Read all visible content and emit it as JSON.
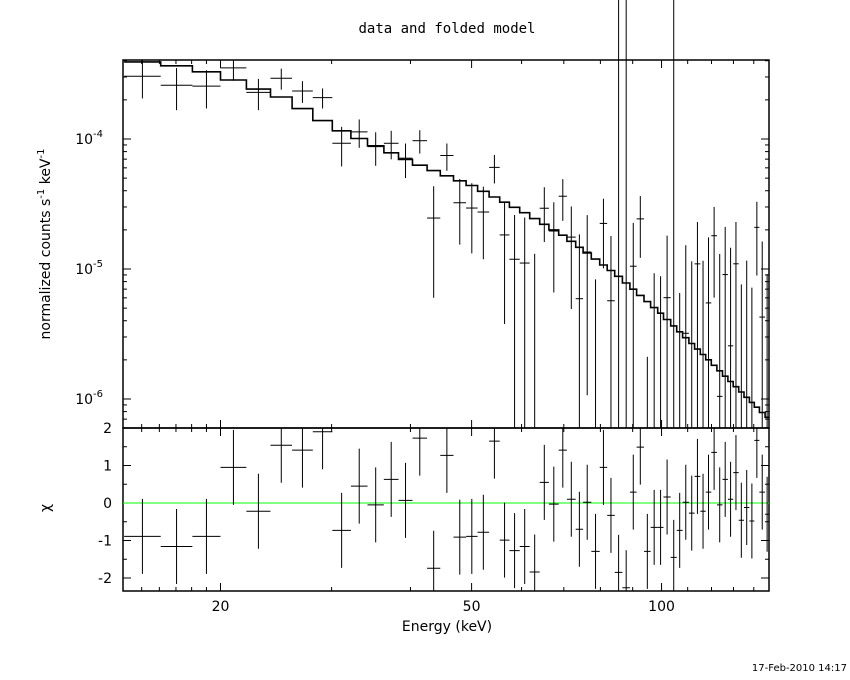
{
  "chart_data": [
    {
      "type": "line",
      "panel": "top",
      "title": "data and folded model",
      "ylabel": {
        "parts": [
          "normalized counts s",
          "-1",
          " keV",
          "-1"
        ]
      },
      "yscale": "log",
      "ylim": [
        6e-07,
        0.000405
      ],
      "xscale": "log",
      "xlim": [
        14.07,
        148.1
      ],
      "ytick_labels": [
        {
          "value": 0.0001,
          "base": "10",
          "exp": "-4"
        },
        {
          "value": 1e-05,
          "base": "10",
          "exp": "-5"
        },
        {
          "value": 1e-06,
          "base": "10",
          "exp": "-6"
        }
      ],
      "model_anchors": [
        [
          14,
          0.0004
        ],
        [
          16,
          0.000385
        ],
        [
          18,
          0.00035
        ],
        [
          20,
          0.00031
        ],
        [
          22,
          0.00026
        ],
        [
          25,
          0.00021
        ],
        [
          28,
          0.000155
        ],
        [
          30,
          0.000125
        ],
        [
          35,
          9e-05
        ],
        [
          40,
          6.7e-05
        ],
        [
          50,
          4.4e-05
        ],
        [
          60,
          2.8e-05
        ],
        [
          70,
          1.8e-05
        ],
        [
          85,
          9e-06
        ],
        [
          100,
          4.5e-06
        ],
        [
          120,
          1.9e-06
        ],
        [
          148,
          7e-07
        ]
      ],
      "error_model": {
        "relative": 0.25,
        "floor": 1.2e-05
      },
      "series": [
        {
          "name": "data",
          "style": "crosses"
        },
        {
          "name": "folded model",
          "style": "histogram"
        }
      ]
    },
    {
      "type": "scatter",
      "panel": "bottom",
      "ylabel": "χ",
      "xlabel": "Energy (keV)",
      "ylim": [
        -2.35,
        2.0
      ],
      "xscale": "log",
      "xlim": [
        14.07,
        148.1
      ],
      "xtick_labels": [
        {
          "value": 20,
          "label": "20"
        },
        {
          "value": 50,
          "label": "50"
        },
        {
          "value": 100,
          "label": "100"
        }
      ],
      "ytick_labels": [
        {
          "value": 2,
          "label": "2"
        },
        {
          "value": 1,
          "label": "1"
        },
        {
          "value": 0,
          "label": "0"
        },
        {
          "value": -1,
          "label": "-1"
        },
        {
          "value": -2,
          "label": "-2"
        }
      ],
      "zero_line_color": "#00ff00",
      "bin_edges": [
        14.07,
        16.08,
        18.05,
        20.0,
        21.98,
        24.0,
        25.97,
        28.01,
        30.08,
        32.19,
        34.2,
        36.3,
        38.3,
        40.3,
        42.5,
        44.6,
        46.8,
        49.0,
        51.1,
        53.3,
        55.4,
        57.4,
        59.6,
        61.8,
        64.1,
        66.3,
        68.7,
        70.8,
        73.1,
        75.1,
        77.4,
        79.8,
        82.0,
        84.3,
        86.7,
        89.1,
        91.3,
        93.8,
        96.1,
        98.6,
        100.7,
        103.4,
        105.7,
        108.0,
        110.5,
        112.8,
        115.2,
        117.5,
        119.9,
        122.4,
        124.9,
        127.4,
        129.9,
        132.5,
        135.1,
        137.8,
        140.3,
        142.9,
        145.9,
        148.1
      ],
      "chi": [
        -0.89,
        -1.16,
        -0.89,
        0.95,
        -0.22,
        1.54,
        1.41,
        1.9,
        -0.73,
        0.45,
        -0.05,
        0.63,
        0.07,
        1.73,
        -1.74,
        1.27,
        -0.91,
        -0.89,
        -0.78,
        1.65,
        -0.99,
        -1.27,
        -1.16,
        -1.84,
        0.55,
        -0.03,
        1.41,
        0.1,
        -0.7,
        0.02,
        -1.29,
        0.95,
        -0.33,
        -1.85,
        -2.26,
        0.29,
        1.49,
        -1.29,
        -0.65,
        -0.65,
        0.16,
        -1.45,
        -0.73,
        0.02,
        -0.27,
        0.71,
        -0.22,
        0.29,
        1.35,
        -0.05,
        0.63,
        0.1,
        0.81,
        -0.46,
        -0.12,
        -0.48,
        1.67,
        0.29,
        -0.3
      ],
      "chi_error": 1.0
    }
  ],
  "timestamp": "17-Feb-2010 14:17"
}
